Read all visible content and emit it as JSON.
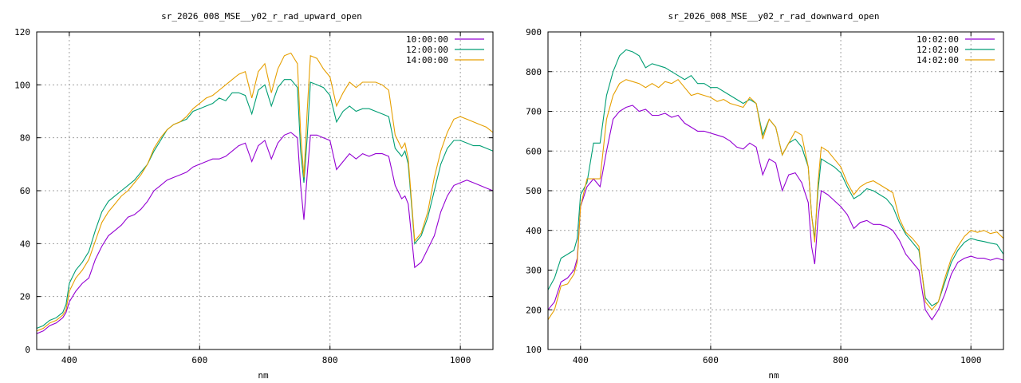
{
  "colors": {
    "c1": "#9400d3",
    "c2": "#009e73",
    "c3": "#e69f00"
  },
  "chart_data": [
    {
      "type": "line",
      "title": "sr_2026_008_MSE__y02_r_rad_upward_open",
      "xlabel": "nm",
      "ylabel": "",
      "xlim": [
        350,
        1050
      ],
      "ylim": [
        0,
        120
      ],
      "xticks": [
        400,
        600,
        800,
        1000
      ],
      "yticks": [
        0,
        20,
        40,
        60,
        80,
        100,
        120
      ],
      "grid": true,
      "legend_position": "top-right",
      "x": [
        350,
        360,
        370,
        380,
        390,
        395,
        400,
        410,
        420,
        430,
        440,
        450,
        460,
        470,
        480,
        490,
        500,
        510,
        520,
        530,
        540,
        550,
        560,
        570,
        580,
        590,
        600,
        610,
        620,
        630,
        640,
        650,
        660,
        670,
        680,
        690,
        700,
        710,
        720,
        730,
        740,
        750,
        755,
        760,
        765,
        770,
        780,
        790,
        800,
        810,
        820,
        830,
        840,
        850,
        860,
        870,
        880,
        890,
        900,
        910,
        915,
        920,
        930,
        940,
        950,
        960,
        970,
        980,
        990,
        1000,
        1010,
        1020,
        1030,
        1040,
        1050
      ],
      "series": [
        {
          "name": "10:00:00",
          "color_key": "c1",
          "values": [
            6,
            7,
            9,
            10,
            12,
            14,
            18,
            22,
            25,
            27,
            34,
            39,
            43,
            45,
            47,
            50,
            51,
            53,
            56,
            60,
            62,
            64,
            65,
            66,
            67,
            69,
            70,
            71,
            72,
            72,
            73,
            75,
            77,
            78,
            71,
            77,
            79,
            72,
            78,
            81,
            82,
            80,
            62,
            49,
            66,
            81,
            81,
            80,
            79,
            68,
            71,
            74,
            72,
            74,
            73,
            74,
            74,
            73,
            62,
            57,
            58,
            55,
            31,
            33,
            38,
            43,
            52,
            58,
            62,
            63,
            64,
            63,
            62,
            61,
            60
          ]
        },
        {
          "name": "12:00:00",
          "color_key": "c2",
          "values": [
            8,
            9,
            11,
            12,
            14,
            17,
            25,
            30,
            33,
            37,
            45,
            52,
            56,
            58,
            60,
            62,
            64,
            67,
            70,
            75,
            79,
            83,
            85,
            86,
            87,
            90,
            91,
            92,
            93,
            95,
            94,
            97,
            97,
            96,
            89,
            98,
            100,
            92,
            99,
            102,
            102,
            99,
            75,
            63,
            80,
            101,
            100,
            99,
            96,
            86,
            90,
            92,
            90,
            91,
            91,
            90,
            89,
            88,
            76,
            73,
            75,
            70,
            40,
            43,
            50,
            60,
            70,
            76,
            79,
            79,
            78,
            77,
            77,
            76,
            75
          ]
        },
        {
          "name": "14:00:00",
          "color_key": "c3",
          "values": [
            7,
            8,
            10,
            11,
            13,
            15,
            22,
            27,
            30,
            34,
            41,
            48,
            52,
            55,
            58,
            60,
            63,
            66,
            70,
            76,
            80,
            83,
            85,
            86,
            88,
            91,
            93,
            95,
            96,
            98,
            100,
            102,
            104,
            105,
            95,
            105,
            108,
            97,
            106,
            111,
            112,
            108,
            82,
            65,
            90,
            111,
            110,
            106,
            103,
            92,
            97,
            101,
            99,
            101,
            101,
            101,
            100,
            98,
            81,
            76,
            78,
            72,
            41,
            44,
            52,
            65,
            75,
            82,
            87,
            88,
            87,
            86,
            85,
            84,
            82
          ]
        }
      ]
    },
    {
      "type": "line",
      "title": "sr_2026_008_MSE__y02_r_rad_downward_open",
      "xlabel": "nm",
      "ylabel": "",
      "xlim": [
        350,
        1050
      ],
      "ylim": [
        100,
        900
      ],
      "xticks": [
        400,
        600,
        800,
        1000
      ],
      "yticks": [
        100,
        200,
        300,
        400,
        500,
        600,
        700,
        800,
        900
      ],
      "grid": true,
      "legend_position": "top-right",
      "x": [
        350,
        360,
        370,
        380,
        390,
        395,
        400,
        410,
        420,
        430,
        440,
        450,
        460,
        470,
        480,
        490,
        500,
        510,
        520,
        530,
        540,
        550,
        560,
        570,
        580,
        590,
        600,
        610,
        620,
        630,
        640,
        650,
        660,
        670,
        680,
        690,
        700,
        710,
        720,
        730,
        740,
        750,
        755,
        760,
        765,
        770,
        780,
        790,
        800,
        810,
        820,
        830,
        840,
        850,
        860,
        870,
        880,
        890,
        900,
        910,
        920,
        930,
        940,
        950,
        960,
        970,
        980,
        990,
        1000,
        1010,
        1020,
        1030,
        1040,
        1050
      ],
      "series": [
        {
          "name": "10:02:00",
          "color_key": "c1",
          "values": [
            200,
            220,
            270,
            280,
            300,
            330,
            460,
            510,
            530,
            510,
            600,
            680,
            700,
            710,
            715,
            700,
            705,
            690,
            690,
            695,
            685,
            690,
            670,
            660,
            650,
            650,
            645,
            640,
            635,
            625,
            610,
            605,
            620,
            610,
            540,
            580,
            570,
            500,
            540,
            545,
            520,
            470,
            360,
            315,
            430,
            500,
            490,
            475,
            460,
            440,
            405,
            420,
            425,
            415,
            415,
            410,
            400,
            375,
            340,
            320,
            300,
            200,
            175,
            200,
            240,
            290,
            320,
            330,
            335,
            330,
            330,
            325,
            330,
            325
          ]
        },
        {
          "name": "12:02:00",
          "color_key": "c2",
          "values": [
            250,
            280,
            330,
            340,
            350,
            380,
            490,
            520,
            620,
            620,
            740,
            800,
            840,
            855,
            850,
            840,
            810,
            820,
            815,
            810,
            800,
            790,
            780,
            790,
            770,
            770,
            760,
            760,
            750,
            740,
            730,
            720,
            730,
            720,
            640,
            680,
            660,
            590,
            620,
            630,
            610,
            560,
            440,
            380,
            500,
            580,
            570,
            560,
            545,
            510,
            480,
            490,
            505,
            500,
            490,
            480,
            460,
            420,
            390,
            370,
            350,
            230,
            210,
            220,
            270,
            320,
            350,
            370,
            380,
            375,
            372,
            368,
            365,
            340
          ]
        },
        {
          "name": "14:02:00",
          "color_key": "c3",
          "values": [
            175,
            200,
            260,
            265,
            290,
            320,
            460,
            530,
            530,
            530,
            680,
            740,
            770,
            780,
            775,
            770,
            760,
            770,
            760,
            775,
            770,
            780,
            760,
            740,
            745,
            740,
            735,
            725,
            730,
            720,
            715,
            710,
            735,
            720,
            630,
            680,
            660,
            590,
            620,
            650,
            640,
            560,
            440,
            370,
            520,
            610,
            600,
            580,
            560,
            520,
            490,
            510,
            520,
            525,
            515,
            505,
            495,
            430,
            395,
            380,
            360,
            220,
            200,
            220,
            280,
            330,
            360,
            385,
            400,
            395,
            400,
            392,
            396,
            380
          ]
        }
      ]
    }
  ]
}
